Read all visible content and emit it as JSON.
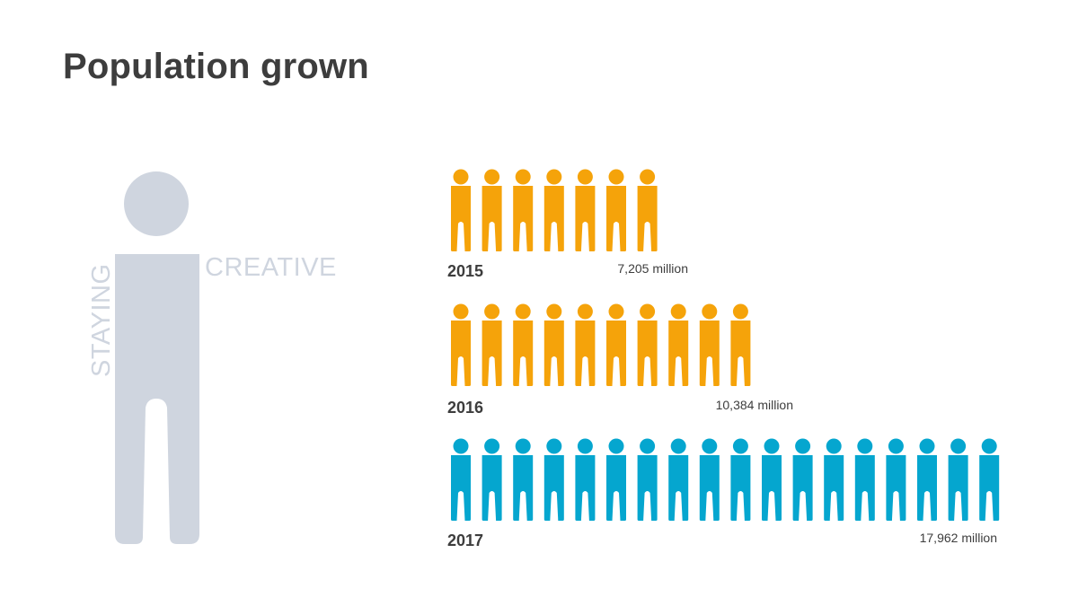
{
  "title": "Population grown",
  "decor": {
    "word_vertical": "STAYING",
    "word_horizontal": "CREATIVE",
    "color": "#cfd5df"
  },
  "chart_data": {
    "type": "bar",
    "encoding": "pictogram",
    "categories": [
      "2015",
      "2016",
      "2017"
    ],
    "values": [
      7205,
      10384,
      17962
    ],
    "value_labels": [
      "7,205 million",
      "10,384 million",
      "17,962 million"
    ],
    "icon_counts": [
      7,
      10,
      18
    ],
    "icon": "person-icon",
    "colors": [
      "#f5a30a",
      "#f5a30a",
      "#05a6cf"
    ]
  }
}
